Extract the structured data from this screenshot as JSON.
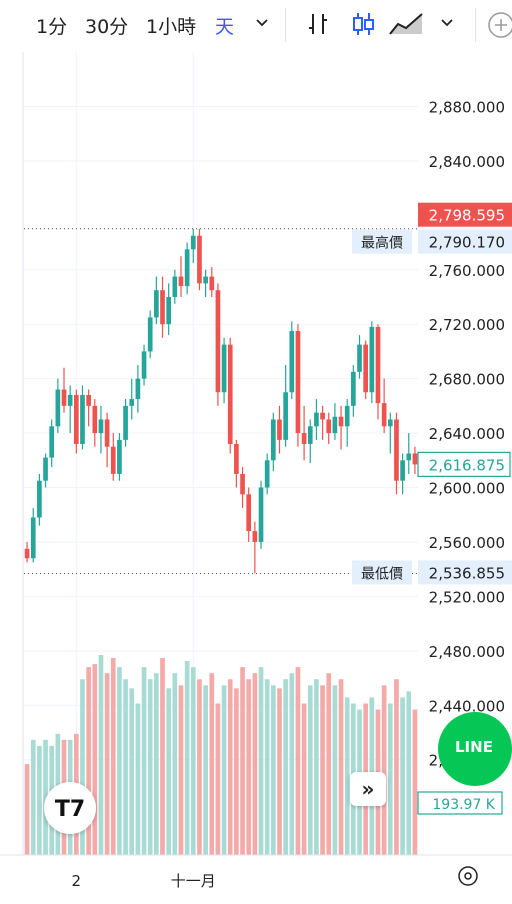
{
  "toolbar": {
    "timeframes": [
      "1分",
      "30分",
      "1小時",
      "天"
    ],
    "active_timeframe": "天",
    "icons": [
      "chevron-down-icon",
      "bar-style-icon",
      "candle-style-icon",
      "area-style-icon",
      "chevron-down-icon",
      "add-icon"
    ]
  },
  "colors": {
    "up": "#26a69a",
    "down": "#ef5350",
    "up_volume": "#a7dbd4",
    "down_volume": "#f4aaa8",
    "current_price_bg": "#ffffff",
    "current_price_border": "#26a69a",
    "high_badge_bg": "#ef5350",
    "label_bg": "#e3effd",
    "line_green": "#06c755"
  },
  "chart_data": {
    "type": "candlestick",
    "y_ticks": [
      "2,880.000",
      "2,840.000",
      "2,760.000",
      "2,720.000",
      "2,680.000",
      "2,640.000",
      "2,600.000",
      "2,560.000",
      "2,520.000",
      "2,480.000",
      "2,440.000",
      "2,400.000"
    ],
    "ylim": [
      2330,
      2920
    ],
    "x_tick_labels": [
      {
        "label": "2",
        "index": 8
      },
      {
        "label": "十一月",
        "index": 27
      }
    ],
    "badges": {
      "high_label": "最高價",
      "high_value": "2,790.170",
      "low_label": "最低價",
      "low_value": "2,536.855",
      "latest_value": "2,798.595",
      "current_value": "2,616.875",
      "volume_value": "193.97 K"
    },
    "high_price": 2790.17,
    "low_price": 2536.855,
    "grid": true,
    "ohlc": [
      [
        2555,
        2560,
        2545,
        2548
      ],
      [
        2548,
        2585,
        2545,
        2578
      ],
      [
        2578,
        2610,
        2572,
        2605
      ],
      [
        2605,
        2625,
        2600,
        2622
      ],
      [
        2622,
        2650,
        2615,
        2645
      ],
      [
        2645,
        2680,
        2640,
        2672
      ],
      [
        2672,
        2688,
        2655,
        2660
      ],
      [
        2660,
        2675,
        2640,
        2668
      ],
      [
        2668,
        2672,
        2625,
        2632
      ],
      [
        2632,
        2675,
        2628,
        2668
      ],
      [
        2668,
        2672,
        2645,
        2660
      ],
      [
        2660,
        2665,
        2630,
        2640
      ],
      [
        2640,
        2660,
        2625,
        2650
      ],
      [
        2650,
        2655,
        2615,
        2630
      ],
      [
        2630,
        2640,
        2605,
        2610
      ],
      [
        2610,
        2640,
        2605,
        2635
      ],
      [
        2635,
        2665,
        2630,
        2660
      ],
      [
        2660,
        2680,
        2650,
        2665
      ],
      [
        2665,
        2690,
        2655,
        2680
      ],
      [
        2680,
        2705,
        2675,
        2700
      ],
      [
        2700,
        2730,
        2695,
        2725
      ],
      [
        2725,
        2755,
        2720,
        2745
      ],
      [
        2745,
        2755,
        2710,
        2720
      ],
      [
        2720,
        2750,
        2712,
        2740
      ],
      [
        2740,
        2760,
        2735,
        2755
      ],
      [
        2755,
        2770,
        2740,
        2748
      ],
      [
        2748,
        2780,
        2742,
        2775
      ],
      [
        2775,
        2790,
        2765,
        2785
      ],
      [
        2785,
        2790,
        2745,
        2750
      ],
      [
        2750,
        2760,
        2740,
        2755
      ],
      [
        2755,
        2762,
        2740,
        2745
      ],
      [
        2745,
        2750,
        2660,
        2670
      ],
      [
        2670,
        2710,
        2662,
        2705
      ],
      [
        2705,
        2710,
        2625,
        2632
      ],
      [
        2632,
        2635,
        2600,
        2610
      ],
      [
        2610,
        2615,
        2585,
        2595
      ],
      [
        2595,
        2600,
        2560,
        2568
      ],
      [
        2568,
        2575,
        2537,
        2560
      ],
      [
        2560,
        2605,
        2555,
        2600
      ],
      [
        2600,
        2625,
        2595,
        2620
      ],
      [
        2620,
        2655,
        2612,
        2650
      ],
      [
        2650,
        2660,
        2625,
        2635
      ],
      [
        2635,
        2690,
        2630,
        2670
      ],
      [
        2670,
        2722,
        2665,
        2715
      ],
      [
        2715,
        2720,
        2630,
        2640
      ],
      [
        2640,
        2660,
        2620,
        2632
      ],
      [
        2632,
        2650,
        2618,
        2645
      ],
      [
        2645,
        2665,
        2635,
        2655
      ],
      [
        2655,
        2660,
        2635,
        2650
      ],
      [
        2650,
        2655,
        2632,
        2640
      ],
      [
        2640,
        2662,
        2635,
        2652
      ],
      [
        2652,
        2660,
        2628,
        2645
      ],
      [
        2645,
        2665,
        2630,
        2660
      ],
      [
        2660,
        2690,
        2652,
        2685
      ],
      [
        2685,
        2712,
        2680,
        2705
      ],
      [
        2705,
        2708,
        2665,
        2670
      ],
      [
        2670,
        2722,
        2662,
        2718
      ],
      [
        2718,
        2720,
        2650,
        2662
      ],
      [
        2662,
        2680,
        2640,
        2645
      ],
      [
        2645,
        2655,
        2625,
        2650
      ],
      [
        2650,
        2655,
        2595,
        2605
      ],
      [
        2605,
        2625,
        2595,
        2620
      ],
      [
        2620,
        2640,
        2610,
        2625
      ],
      [
        2625,
        2630,
        2610,
        2617
      ]
    ],
    "volume": [
      30,
      38,
      36,
      38,
      36,
      40,
      38,
      38,
      40,
      58,
      62,
      63,
      66,
      60,
      65,
      62,
      58,
      55,
      50,
      62,
      58,
      60,
      65,
      55,
      60,
      56,
      64,
      62,
      58,
      56,
      60,
      50,
      56,
      58,
      55,
      62,
      58,
      60,
      62,
      58,
      56,
      55,
      58,
      60,
      62,
      50,
      56,
      58,
      56,
      60,
      56,
      58,
      52,
      50,
      48,
      50,
      52,
      48,
      56,
      50,
      58,
      52,
      54,
      48
    ]
  }
}
